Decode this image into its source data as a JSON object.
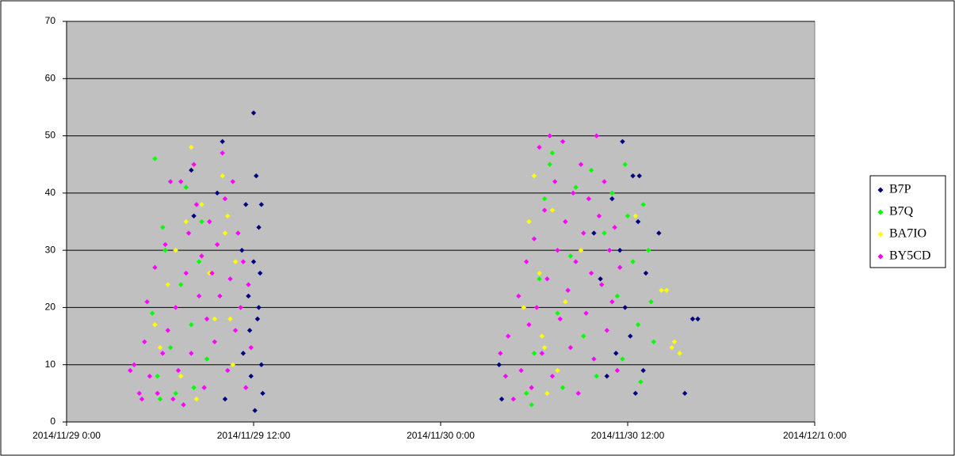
{
  "chart_data": {
    "type": "scatter",
    "xlim": [
      "2014/11/29 0:00",
      "2014/12/1 0:00"
    ],
    "xticks": [
      "2014/11/29 0:00",
      "2014/11/29 12:00",
      "2014/11/30 0:00",
      "2014/11/30 12:00",
      "2014/12/1 0:00"
    ],
    "ylim": [
      0,
      70
    ],
    "yticks": [
      0,
      10,
      20,
      30,
      40,
      50,
      60,
      70
    ],
    "grid": true,
    "legend": "right",
    "series": [
      {
        "name": "B7P",
        "color": "#000080",
        "x": [
          "2014/11/29 8:00",
          "2014/11/29 8:10",
          "2014/11/29 9:40",
          "2014/11/29 10:00",
          "2014/11/29 10:10",
          "2014/11/29 11:15",
          "2014/11/29 11:20",
          "2014/11/29 11:30",
          "2014/11/29 11:40",
          "2014/11/29 11:50",
          "2014/11/29 12:00",
          "2014/11/29 12:05",
          "2014/11/29 12:10",
          "2014/11/29 12:15",
          "2014/11/29 12:20",
          "2014/11/29 12:25",
          "2014/11/29 12:30",
          "2014/11/29 12:30",
          "2014/11/29 12:35",
          "2014/11/29 11:45",
          "2014/11/29 12:00",
          "2014/11/29 12:20",
          "2014/11/30 3:45",
          "2014/11/30 3:55",
          "2014/11/30 9:50",
          "2014/11/30 10:15",
          "2014/11/30 10:40",
          "2014/11/30 11:00",
          "2014/11/30 11:30",
          "2014/11/30 11:40",
          "2014/11/30 11:50",
          "2014/11/30 12:10",
          "2014/11/30 12:20",
          "2014/11/30 12:30",
          "2014/11/30 12:45",
          "2014/11/30 13:00",
          "2014/11/30 13:10",
          "2014/11/30 14:00",
          "2014/11/30 15:40",
          "2014/11/30 16:10",
          "2014/11/30 16:30",
          "2014/11/30 11:15",
          "2014/11/30 12:40"
        ],
        "values": [
          44,
          36,
          40,
          49,
          4,
          30,
          12,
          38,
          22,
          8,
          54,
          2,
          43,
          18,
          34,
          26,
          38,
          10,
          5,
          16,
          28,
          20,
          10,
          4,
          33,
          25,
          8,
          39,
          30,
          49,
          20,
          15,
          43,
          5,
          43,
          9,
          26,
          33,
          5,
          18,
          18,
          12,
          35
        ]
      },
      {
        "name": "B7Q",
        "color": "#00ff00",
        "x": [
          "2014/11/29 5:40",
          "2014/11/29 5:30",
          "2014/11/29 5:50",
          "2014/11/29 6:00",
          "2014/11/29 6:20",
          "2014/11/29 6:40",
          "2014/11/29 7:00",
          "2014/11/29 7:20",
          "2014/11/29 7:40",
          "2014/11/29 8:00",
          "2014/11/29 8:10",
          "2014/11/29 8:30",
          "2014/11/29 9:00",
          "2014/11/29 8:40",
          "2014/11/29 6:10",
          "2014/11/30 5:30",
          "2014/11/30 5:50",
          "2014/11/30 6:00",
          "2014/11/30 6:20",
          "2014/11/30 6:40",
          "2014/11/30 7:00",
          "2014/11/30 7:10",
          "2014/11/30 7:30",
          "2014/11/30 7:50",
          "2014/11/30 8:20",
          "2014/11/30 8:40",
          "2014/11/30 9:10",
          "2014/11/30 9:40",
          "2014/11/30 10:00",
          "2014/11/30 10:30",
          "2014/11/30 11:00",
          "2014/11/30 11:20",
          "2014/11/30 11:40",
          "2014/11/30 12:00",
          "2014/11/30 12:20",
          "2014/11/30 12:40",
          "2014/11/30 13:00",
          "2014/11/30 13:20",
          "2014/11/30 13:40",
          "2014/11/30 12:50",
          "2014/11/30 13:30",
          "2014/11/30 11:50"
        ],
        "values": [
          46,
          19,
          8,
          4,
          30,
          13,
          5,
          24,
          41,
          17,
          6,
          28,
          11,
          35,
          34,
          5,
          3,
          12,
          25,
          39,
          45,
          47,
          19,
          6,
          29,
          41,
          15,
          44,
          8,
          33,
          40,
          22,
          11,
          36,
          28,
          17,
          38,
          30,
          14,
          7,
          21,
          45
        ]
      },
      {
        "name": "BA7IO",
        "color": "#ffff00",
        "x": [
          "2014/11/29 5:40",
          "2014/11/29 6:00",
          "2014/11/29 6:30",
          "2014/11/29 7:00",
          "2014/11/29 7:20",
          "2014/11/29 7:40",
          "2014/11/29 8:00",
          "2014/11/29 8:10",
          "2014/11/29 8:20",
          "2014/11/29 8:40",
          "2014/11/29 9:10",
          "2014/11/29 9:30",
          "2014/11/29 10:00",
          "2014/11/29 10:10",
          "2014/11/29 10:20",
          "2014/11/29 10:30",
          "2014/11/29 10:40",
          "2014/11/29 10:50",
          "2014/11/30 5:20",
          "2014/11/30 5:40",
          "2014/11/30 6:00",
          "2014/11/30 6:20",
          "2014/11/30 6:30",
          "2014/11/30 6:40",
          "2014/11/30 6:50",
          "2014/11/30 7:10",
          "2014/11/30 7:30",
          "2014/11/30 8:00",
          "2014/11/30 9:00",
          "2014/11/30 12:30",
          "2014/11/30 14:10",
          "2014/11/30 14:30",
          "2014/11/30 15:00",
          "2014/11/30 14:50",
          "2014/11/30 15:20"
        ],
        "values": [
          17,
          13,
          24,
          30,
          8,
          35,
          48,
          45,
          4,
          38,
          26,
          18,
          43,
          33,
          36,
          18,
          10,
          28,
          20,
          35,
          43,
          26,
          15,
          13,
          5,
          37,
          9,
          21,
          30,
          36,
          23,
          23,
          14,
          13,
          12
        ]
      },
      {
        "name": "BY5CD",
        "color": "#ff00ff",
        "x": [
          "2014/11/29 4:05",
          "2014/11/29 4:20",
          "2014/11/29 4:40",
          "2014/11/29 4:50",
          "2014/11/29 5:00",
          "2014/11/29 5:10",
          "2014/11/29 5:20",
          "2014/11/29 5:40",
          "2014/11/29 5:50",
          "2014/11/29 6:10",
          "2014/11/29 6:20",
          "2014/11/29 6:30",
          "2014/11/29 6:40",
          "2014/11/29 6:50",
          "2014/11/29 7:00",
          "2014/11/29 7:10",
          "2014/11/29 7:20",
          "2014/11/29 7:30",
          "2014/11/29 7:40",
          "2014/11/29 7:50",
          "2014/11/29 8:00",
          "2014/11/29 8:10",
          "2014/11/29 8:20",
          "2014/11/29 8:30",
          "2014/11/29 8:40",
          "2014/11/29 8:50",
          "2014/11/29 9:00",
          "2014/11/29 9:10",
          "2014/11/29 9:20",
          "2014/11/29 9:30",
          "2014/11/29 9:40",
          "2014/11/29 9:50",
          "2014/11/29 10:00",
          "2014/11/29 10:10",
          "2014/11/29 10:20",
          "2014/11/29 10:30",
          "2014/11/29 10:40",
          "2014/11/29 10:50",
          "2014/11/29 11:00",
          "2014/11/29 11:10",
          "2014/11/29 11:20",
          "2014/11/29 11:30",
          "2014/11/29 11:40",
          "2014/11/29 11:50",
          "2014/11/30 3:50",
          "2014/11/30 4:10",
          "2014/11/30 4:20",
          "2014/11/30 4:40",
          "2014/11/30 5:00",
          "2014/11/30 5:10",
          "2014/11/30 5:30",
          "2014/11/30 5:40",
          "2014/11/30 5:50",
          "2014/11/30 6:00",
          "2014/11/30 6:10",
          "2014/11/30 6:20",
          "2014/11/30 6:30",
          "2014/11/30 6:40",
          "2014/11/30 6:50",
          "2014/11/30 7:00",
          "2014/11/30 7:10",
          "2014/11/30 7:20",
          "2014/11/30 7:30",
          "2014/11/30 7:40",
          "2014/11/30 7:50",
          "2014/11/30 8:00",
          "2014/11/30 8:10",
          "2014/11/30 8:20",
          "2014/11/30 8:30",
          "2014/11/30 8:40",
          "2014/11/30 8:50",
          "2014/11/30 9:00",
          "2014/11/30 9:10",
          "2014/11/30 9:20",
          "2014/11/30 9:30",
          "2014/11/30 9:40",
          "2014/11/30 9:50",
          "2014/11/30 10:00",
          "2014/11/30 10:10",
          "2014/11/30 10:20",
          "2014/11/30 10:30",
          "2014/11/30 10:40",
          "2014/11/30 10:50",
          "2014/11/30 11:00",
          "2014/11/30 11:10",
          "2014/11/30 11:20",
          "2014/11/30 11:30"
        ],
        "values": [
          9,
          10,
          5,
          4,
          14,
          21,
          8,
          27,
          5,
          12,
          31,
          16,
          42,
          4,
          20,
          9,
          42,
          3,
          26,
          33,
          12,
          45,
          38,
          22,
          29,
          6,
          18,
          35,
          26,
          14,
          31,
          22,
          47,
          39,
          9,
          25,
          42,
          16,
          33,
          20,
          28,
          6,
          24,
          13,
          12,
          8,
          15,
          4,
          22,
          9,
          28,
          17,
          6,
          32,
          20,
          48,
          12,
          37,
          25,
          50,
          8,
          42,
          30,
          18,
          49,
          35,
          23,
          13,
          40,
          28,
          5,
          45,
          33,
          19,
          39,
          26,
          11,
          50,
          36,
          24,
          42,
          16,
          30,
          21,
          34,
          9,
          27
        ]
      }
    ]
  }
}
